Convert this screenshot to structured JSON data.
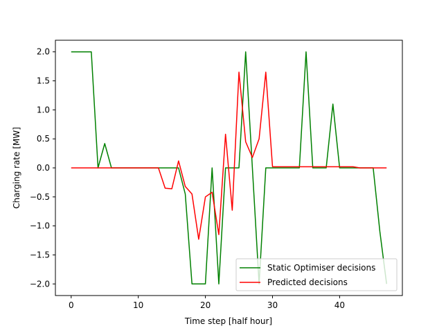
{
  "chart_data": {
    "type": "line",
    "xlabel": "Time step [half hour]",
    "ylabel": "Charging rate [MW]",
    "xlim": [
      -2.35,
      49.35
    ],
    "ylim": [
      -2.2,
      2.2
    ],
    "xticks": [
      0,
      10,
      20,
      30,
      40
    ],
    "yticks": [
      -2.0,
      -1.5,
      -1.0,
      -0.5,
      0.0,
      0.5,
      1.0,
      1.5,
      2.0
    ],
    "ytick_labels": [
      "−2.0",
      "−1.5",
      "−1.0",
      "−0.5",
      "0.0",
      "0.5",
      "1.0",
      "1.5",
      "2.0"
    ],
    "grid": false,
    "legend_position": "lower-right",
    "x": [
      0,
      1,
      2,
      3,
      4,
      5,
      6,
      7,
      8,
      9,
      10,
      11,
      12,
      13,
      14,
      15,
      16,
      17,
      18,
      19,
      20,
      21,
      22,
      23,
      24,
      25,
      26,
      27,
      28,
      29,
      30,
      31,
      32,
      33,
      34,
      35,
      36,
      37,
      38,
      39,
      40,
      41,
      42,
      43,
      44,
      45,
      46,
      47
    ],
    "series": [
      {
        "name": "Static Optimiser decisions",
        "color": "#008000",
        "values": [
          2.0,
          2.0,
          2.0,
          2.0,
          0.0,
          0.42,
          0.0,
          0.0,
          0.0,
          0.0,
          0.0,
          0.0,
          0.0,
          0.0,
          0.0,
          0.0,
          0.0,
          -0.45,
          -2.0,
          -2.0,
          -2.0,
          0.0,
          -2.0,
          0.0,
          0.0,
          0.0,
          2.0,
          0.0,
          -2.0,
          0.0,
          0.0,
          0.0,
          0.0,
          0.0,
          0.0,
          2.0,
          0.0,
          0.0,
          0.0,
          1.1,
          0.0,
          0.0,
          0.0,
          0.0,
          0.0,
          0.0,
          -1.1,
          -2.0
        ]
      },
      {
        "name": "Predicted decisions",
        "color": "#ff0000",
        "values": [
          0.0,
          0.0,
          0.0,
          0.0,
          0.0,
          0.0,
          0.0,
          0.0,
          0.0,
          0.0,
          0.0,
          0.0,
          0.0,
          0.0,
          -0.35,
          -0.36,
          0.12,
          -0.32,
          -0.45,
          -1.23,
          -0.5,
          -0.42,
          -1.15,
          0.58,
          -0.73,
          1.65,
          0.45,
          0.18,
          0.5,
          1.65,
          0.02,
          0.02,
          0.02,
          0.02,
          0.02,
          0.02,
          0.02,
          0.02,
          0.02,
          0.02,
          0.02,
          0.02,
          0.02,
          0.0,
          0.0,
          0.0,
          0.0,
          0.0
        ]
      }
    ]
  }
}
